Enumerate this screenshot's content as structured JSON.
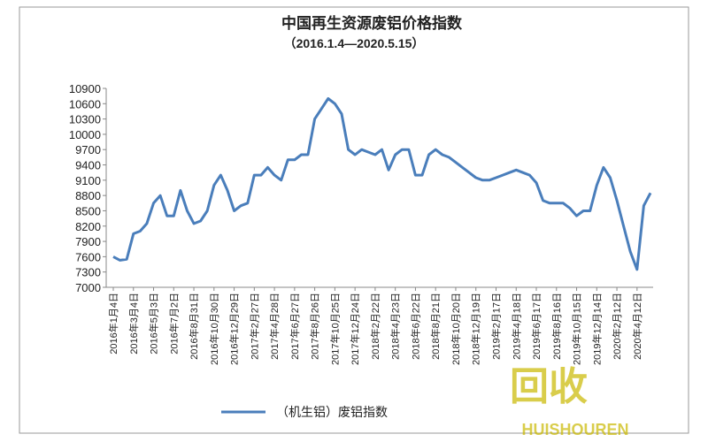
{
  "chart_data": {
    "type": "line",
    "title": "中国再生资源废铝价格指数",
    "subtitle": "（2016.1.4—2020.5.15）",
    "categories": [
      "2016年1月4日",
      null,
      null,
      "2016年3月4日",
      null,
      null,
      "2016年5月3日",
      null,
      null,
      "2016年7月2日",
      null,
      null,
      "2016年8月31日",
      null,
      null,
      "2016年10月30日",
      null,
      null,
      "2016年12月29日",
      null,
      null,
      "2017年2月27日",
      null,
      null,
      "2017年4月28日",
      null,
      null,
      "2017年6月27日",
      null,
      null,
      "2017年8月26日",
      null,
      null,
      "2017年10月25日",
      null,
      null,
      "2017年12月24日",
      null,
      null,
      "2018年2月22日",
      null,
      null,
      "2018年4月23日",
      null,
      null,
      "2018年6月22日",
      null,
      null,
      "2018年8月21日",
      null,
      null,
      "2018年10月20日",
      null,
      null,
      "2018年12月19日",
      null,
      null,
      "2019年2月17日",
      null,
      null,
      "2019年4月18日",
      null,
      null,
      "2019年6月17日",
      null,
      null,
      "2019年8月16日",
      null,
      null,
      "2019年10月15日",
      null,
      null,
      "2019年12月14日",
      null,
      null,
      "2020年2月12日",
      null,
      null,
      "2020年4月12日",
      null,
      null
    ],
    "series": [
      {
        "name": "（机生铝）废铝指数",
        "color": "#4a7ebb",
        "values": [
          7600,
          7530,
          7550,
          8050,
          8100,
          8250,
          8650,
          8800,
          8400,
          8400,
          8900,
          8500,
          8250,
          8300,
          8500,
          9000,
          9200,
          8900,
          8500,
          8600,
          8650,
          9200,
          9200,
          9350,
          9200,
          9100,
          9500,
          9500,
          9600,
          9600,
          10300,
          10500,
          10700,
          10600,
          10400,
          9700,
          9600,
          9700,
          9650,
          9600,
          9700,
          9300,
          9600,
          9700,
          9700,
          9200,
          9200,
          9600,
          9700,
          9600,
          9550,
          9450,
          9350,
          9250,
          9150,
          9100,
          9100,
          9150,
          9200,
          9250,
          9300,
          9250,
          9200,
          9050,
          8700,
          8650,
          8650,
          8650,
          8550,
          8400,
          8500,
          8500,
          9000,
          9350,
          9150,
          8700,
          8200,
          7700,
          7350,
          8600,
          8850
        ]
      }
    ],
    "ylim": [
      7000,
      10900
    ],
    "yticks": [
      7000,
      7300,
      7600,
      7900,
      8200,
      8500,
      8800,
      9100,
      9400,
      9700,
      10000,
      10300,
      10600,
      10900
    ],
    "grid": false,
    "legend": "bottom",
    "watermark": [
      "回收",
      "HUISHOUREN"
    ]
  }
}
